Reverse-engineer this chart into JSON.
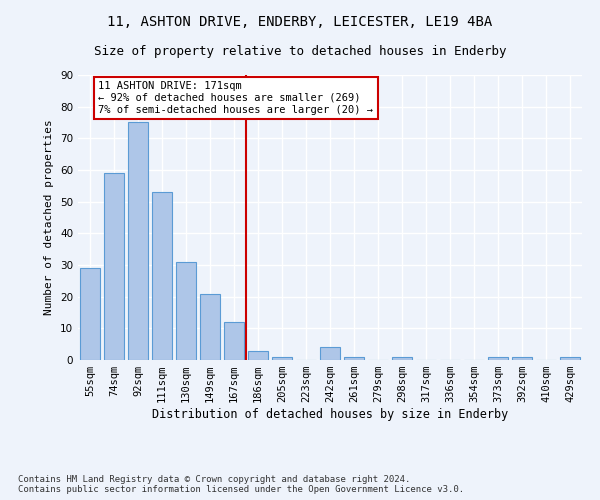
{
  "title1": "11, ASHTON DRIVE, ENDERBY, LEICESTER, LE19 4BA",
  "title2": "Size of property relative to detached houses in Enderby",
  "xlabel": "Distribution of detached houses by size in Enderby",
  "ylabel": "Number of detached properties",
  "categories": [
    "55sqm",
    "74sqm",
    "92sqm",
    "111sqm",
    "130sqm",
    "149sqm",
    "167sqm",
    "186sqm",
    "205sqm",
    "223sqm",
    "242sqm",
    "261sqm",
    "279sqm",
    "298sqm",
    "317sqm",
    "336sqm",
    "354sqm",
    "373sqm",
    "392sqm",
    "410sqm",
    "429sqm"
  ],
  "values": [
    29,
    59,
    75,
    53,
    31,
    21,
    12,
    3,
    1,
    0,
    4,
    1,
    0,
    1,
    0,
    0,
    0,
    1,
    1,
    0,
    1
  ],
  "bar_color": "#aec6e8",
  "bar_edge_color": "#5b9bd5",
  "vline_x": 6.5,
  "vline_color": "#cc0000",
  "annotation_line1": "11 ASHTON DRIVE: 171sqm",
  "annotation_line2": "← 92% of detached houses are smaller (269)",
  "annotation_line3": "7% of semi-detached houses are larger (20) →",
  "annotation_color": "#cc0000",
  "ylim": [
    0,
    90
  ],
  "yticks": [
    0,
    10,
    20,
    30,
    40,
    50,
    60,
    70,
    80,
    90
  ],
  "bg_color": "#eef3fb",
  "grid_color": "#ffffff",
  "footer": "Contains HM Land Registry data © Crown copyright and database right 2024.\nContains public sector information licensed under the Open Government Licence v3.0.",
  "title1_fontsize": 10,
  "title2_fontsize": 9,
  "xlabel_fontsize": 8.5,
  "ylabel_fontsize": 8,
  "tick_fontsize": 7.5,
  "annotation_fontsize": 7.5,
  "footer_fontsize": 6.5
}
